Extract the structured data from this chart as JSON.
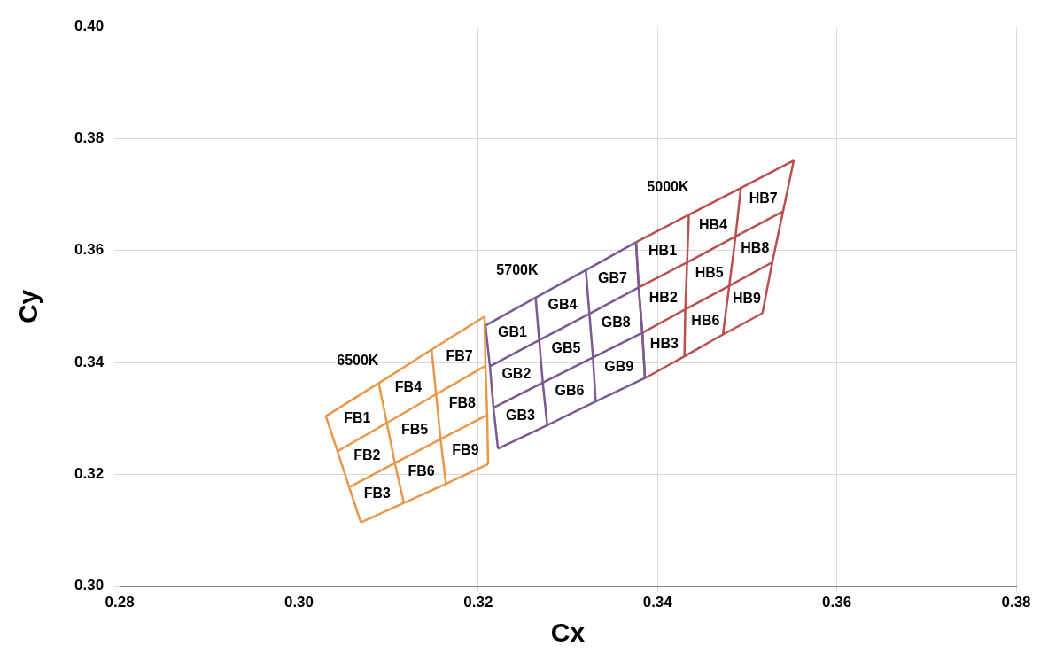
{
  "chart_data": {
    "type": "line",
    "xlabel": "Cx",
    "ylabel": "Cy",
    "marker": "none",
    "line_style": "solid",
    "grid": true,
    "legend": false,
    "xlim": [
      0.28,
      0.38
    ],
    "ylim": [
      0.3,
      0.4
    ],
    "xticks": [
      {
        "value": 0.28,
        "label": "0.28"
      },
      {
        "value": 0.3,
        "label": "0.30"
      },
      {
        "value": 0.32,
        "label": "0.32"
      },
      {
        "value": 0.34,
        "label": "0.34"
      },
      {
        "value": 0.36,
        "label": "0.36"
      },
      {
        "value": 0.38,
        "label": "0.38"
      }
    ],
    "yticks": [
      {
        "value": 0.3,
        "label": "0.30"
      },
      {
        "value": 0.32,
        "label": "0.32"
      },
      {
        "value": 0.34,
        "label": "0.34"
      },
      {
        "value": 0.36,
        "label": "0.36"
      },
      {
        "value": 0.38,
        "label": "0.38"
      },
      {
        "value": 0.4,
        "label": "0.40"
      }
    ],
    "series": [
      {
        "type": "line",
        "color": "#e8984a",
        "x": [
          0.303,
          0.3043,
          0.3056,
          0.3069,
          null,
          0.3089,
          0.3098,
          0.3107,
          0.3117,
          null,
          0.3148,
          0.3153,
          0.3158,
          0.3164,
          null,
          0.3207,
          0.3208,
          0.321,
          0.3211,
          null,
          0.303,
          0.3089,
          0.3148,
          0.3207,
          null,
          0.3043,
          0.3098,
          0.3153,
          0.3208,
          null,
          0.3056,
          0.3107,
          0.3158,
          0.321,
          null,
          0.3069,
          0.3117,
          0.3164,
          0.3211
        ],
        "values": [
          0.3304,
          0.3241,
          0.3177,
          0.3114,
          null,
          0.3363,
          0.3292,
          0.322,
          0.3149,
          null,
          0.3423,
          0.3343,
          0.3263,
          0.3183,
          null,
          0.3482,
          0.3394,
          0.3306,
          0.3218,
          null,
          0.3304,
          0.3363,
          0.3423,
          0.3482,
          null,
          0.3241,
          0.3292,
          0.3343,
          0.3394,
          null,
          0.3177,
          0.322,
          0.3263,
          0.3306,
          null,
          0.3114,
          0.3149,
          0.3183,
          0.3218
        ]
      },
      {
        "type": "line",
        "color": "#7b5a93",
        "x": [
          0.3208,
          0.3213,
          0.3217,
          0.3222,
          null,
          0.3264,
          0.3268,
          0.3272,
          0.3277,
          null,
          0.332,
          0.3324,
          0.3328,
          0.3331,
          null,
          0.3376,
          0.3379,
          0.3383,
          0.3386,
          null,
          0.3208,
          0.3264,
          0.332,
          0.3376,
          null,
          0.3213,
          0.3268,
          0.3324,
          0.3379,
          null,
          0.3217,
          0.3272,
          0.3328,
          0.3383,
          null,
          0.3222,
          0.3277,
          0.3331,
          0.3386
        ],
        "values": [
          0.3466,
          0.3393,
          0.3319,
          0.3246,
          null,
          0.3516,
          0.344,
          0.3364,
          0.3288,
          null,
          0.3565,
          0.3487,
          0.3409,
          0.333,
          null,
          0.3615,
          0.3534,
          0.3453,
          0.3372,
          null,
          0.3466,
          0.3516,
          0.3565,
          0.3615,
          null,
          0.3393,
          0.344,
          0.3487,
          0.3534,
          null,
          0.3319,
          0.3364,
          0.3409,
          0.3453,
          null,
          0.3246,
          0.3288,
          0.333,
          0.3372
        ]
      },
      {
        "type": "line",
        "color": "#b9504f",
        "x": [
          0.3376,
          0.3379,
          0.3383,
          0.3386,
          null,
          0.3435,
          0.3433,
          0.3431,
          0.343,
          null,
          0.3493,
          0.3487,
          0.348,
          0.3473,
          null,
          0.3552,
          0.354,
          0.3528,
          0.3517,
          null,
          0.3376,
          0.3435,
          0.3493,
          0.3552,
          null,
          0.3379,
          0.3433,
          0.3487,
          0.354,
          null,
          0.3383,
          0.3431,
          0.348,
          0.3528,
          null,
          0.3386,
          0.343,
          0.3473,
          0.3517
        ],
        "values": [
          0.3615,
          0.3534,
          0.3453,
          0.3372,
          null,
          0.3664,
          0.3579,
          0.3495,
          0.3411,
          null,
          0.3712,
          0.3625,
          0.3537,
          0.345,
          null,
          0.3761,
          0.367,
          0.3579,
          0.3488,
          null,
          0.3615,
          0.3664,
          0.3712,
          0.3761,
          null,
          0.3534,
          0.3579,
          0.3625,
          0.367,
          null,
          0.3453,
          0.3495,
          0.3537,
          0.3579,
          null,
          0.3372,
          0.3411,
          0.345,
          0.3488
        ]
      }
    ],
    "annotations": [
      "6500K",
      "5700K",
      "5000K",
      "FB1",
      "FB2",
      "FB3",
      "FB4",
      "FB5",
      "FB6",
      "FB7",
      "FB8",
      "FB9",
      "GB1",
      "GB2",
      "GB3",
      "GB4",
      "GB5",
      "GB6",
      "GB7",
      "GB8",
      "GB9",
      "HB1",
      "HB2",
      "HB3",
      "HB4",
      "HB5",
      "HB6",
      "HB7",
      "HB8",
      "HB9"
    ]
  }
}
